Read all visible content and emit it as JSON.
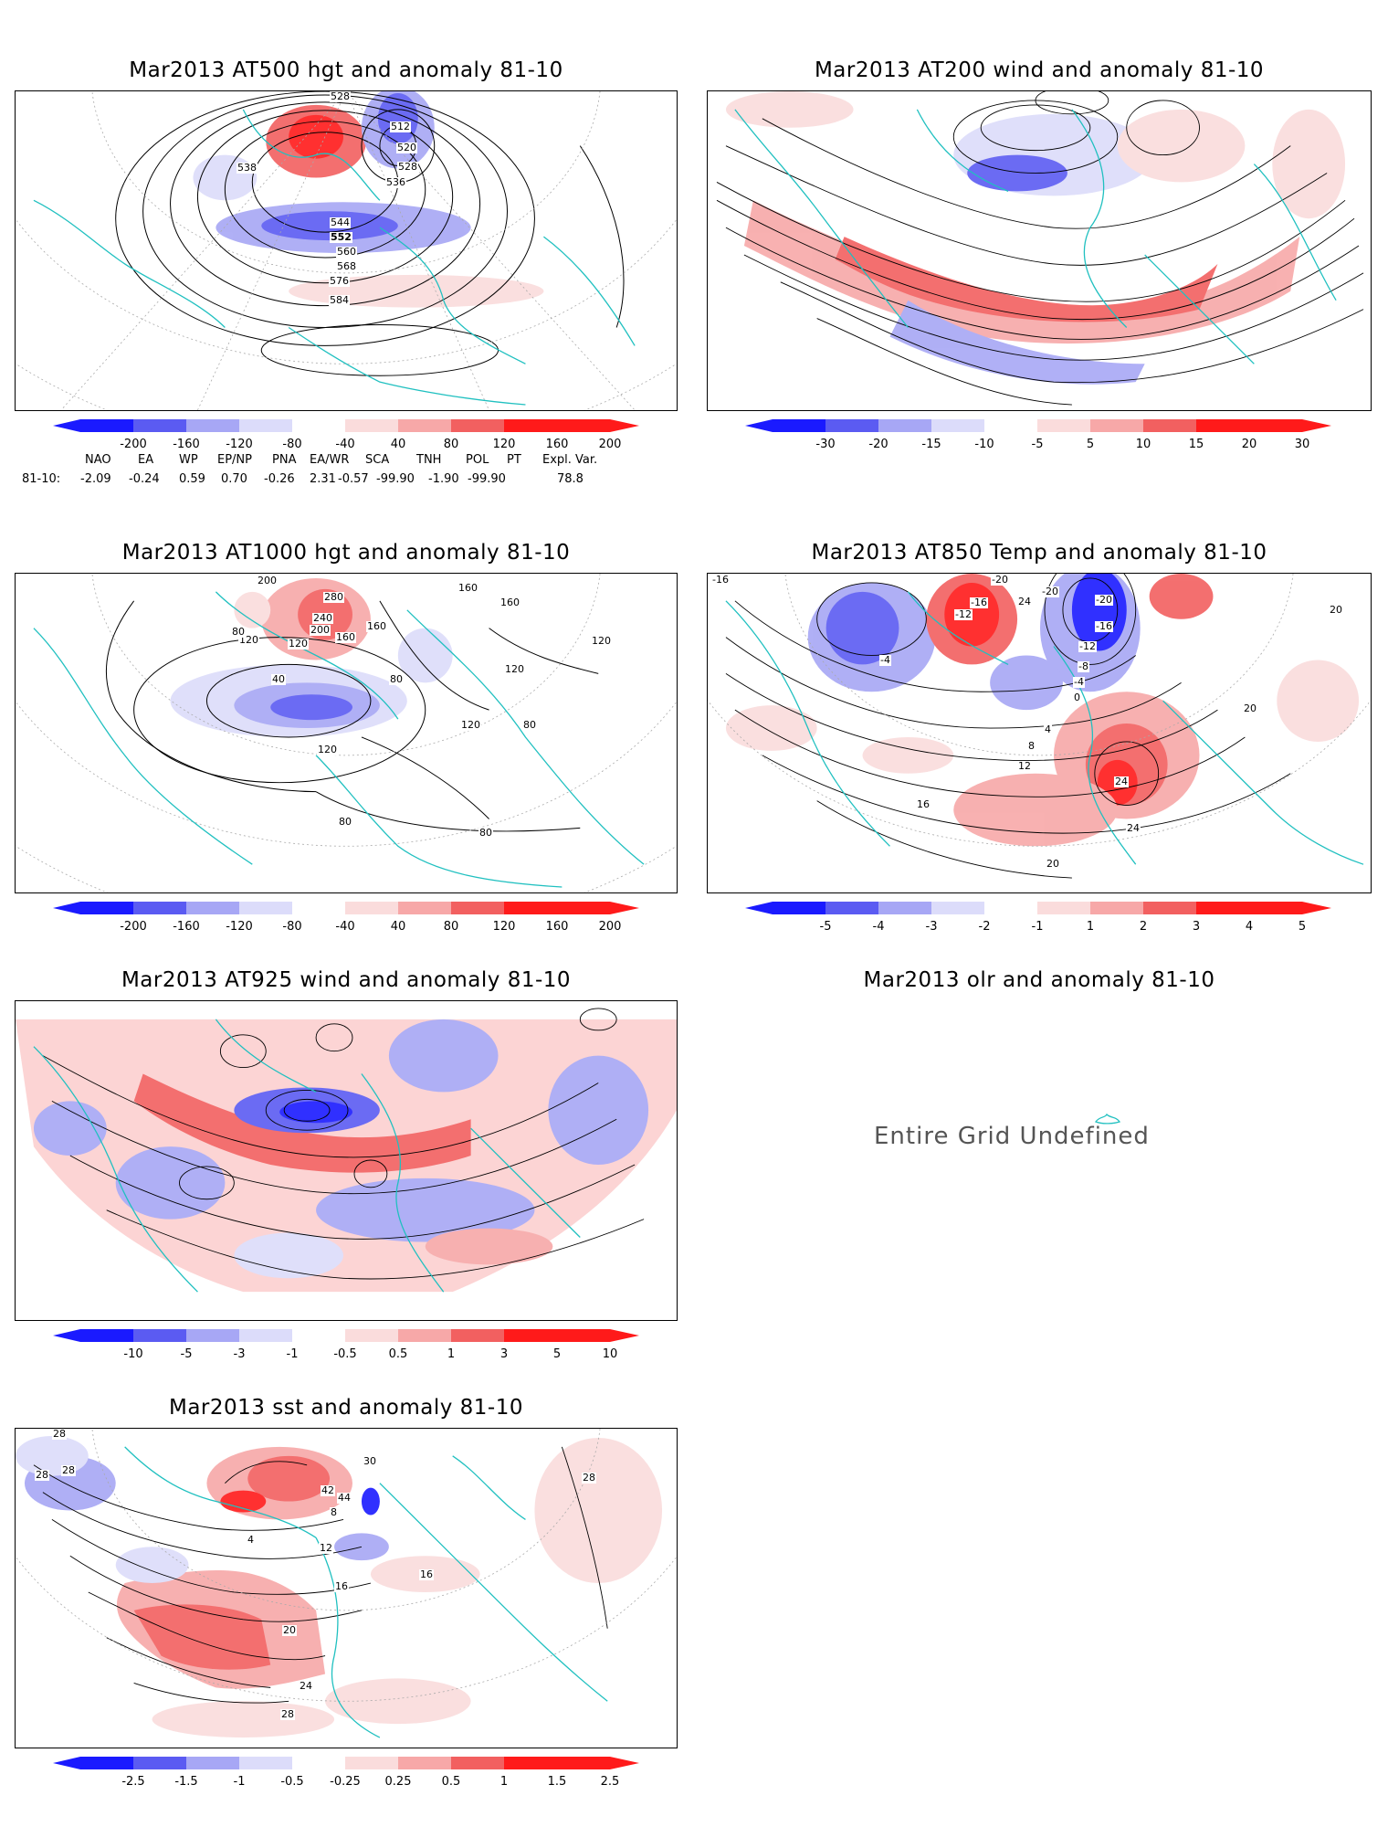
{
  "colors": {
    "neg_strong": "#1a1aff",
    "neg_mid": "#5b5bf2",
    "neg_light": "#a7a7f5",
    "neg_faint": "#dcdcfa",
    "pos_faint": "#fadcdc",
    "pos_light": "#f7a8a8",
    "pos_mid": "#f26060",
    "pos_strong": "#ff1a1a",
    "coast": "#20c0c0",
    "contour": "#000000"
  },
  "panels": [
    {
      "id": "z500",
      "title": "Mar2013 AT500 hgt and anomaly 81-10",
      "colorbar": [
        "-200",
        "-160",
        "-120",
        "-80",
        "-40",
        "40",
        "80",
        "120",
        "160",
        "200"
      ],
      "contour_labels": [
        "528",
        "512",
        "520",
        "528",
        "536",
        "538",
        "544",
        "552",
        "560",
        "568",
        "576",
        "584"
      ]
    },
    {
      "id": "w200",
      "title": "Mar2013 AT200 wind and anomaly 81-10",
      "colorbar": [
        "-30",
        "-20",
        "-15",
        "-10",
        "-5",
        "5",
        "10",
        "15",
        "20",
        "30"
      ],
      "contour_labels": []
    },
    {
      "id": "z1000",
      "title": "Mar2013 AT1000 hgt and anomaly 81-10",
      "colorbar": [
        "-200",
        "-160",
        "-120",
        "-80",
        "-40",
        "40",
        "80",
        "120",
        "160",
        "200"
      ],
      "contour_labels": [
        "200",
        "280",
        "240",
        "200",
        "160",
        "120",
        "160",
        "120",
        "80",
        "40",
        "80",
        "120",
        "120",
        "160",
        "160",
        "120",
        "80",
        "120",
        "80",
        "80"
      ]
    },
    {
      "id": "t850",
      "title": "Mar2013 AT850 Temp and anomaly 81-10",
      "colorbar": [
        "-5",
        "-4",
        "-3",
        "-2",
        "-1",
        "1",
        "2",
        "3",
        "4",
        "5"
      ],
      "contour_labels": [
        "-16",
        "-20",
        "-12",
        "-16",
        "24",
        "-20",
        "-20",
        "-16",
        "-12",
        "-8",
        "-4",
        "0",
        "4",
        "8",
        "12",
        "16",
        "20",
        "24",
        "20",
        "24",
        "20",
        "-4"
      ]
    },
    {
      "id": "w925",
      "title": "Mar2013 AT925 wind and anomaly 81-10",
      "colorbar": [
        "-10",
        "-5",
        "-3",
        "-1",
        "-0.5",
        "0.5",
        "1",
        "3",
        "5",
        "10"
      ],
      "contour_labels": []
    },
    {
      "id": "olr",
      "title": "Mar2013 olr and anomaly 81-10",
      "message": "Entire Grid Undefined"
    },
    {
      "id": "sst",
      "title": "Mar2013 sst and anomaly 81-10",
      "colorbar": [
        "-2.5",
        "-1.5",
        "-1",
        "-0.5",
        "-0.25",
        "0.25",
        "0.5",
        "1",
        "1.5",
        "2.5"
      ],
      "contour_labels": [
        "28",
        "28",
        "28",
        "4",
        "12",
        "16",
        "20",
        "24",
        "28",
        "16",
        "28",
        "30",
        "42",
        "44",
        "8"
      ]
    }
  ],
  "indices": {
    "headers": [
      "NAO",
      "EA",
      "WP",
      "EP/NP",
      "PNA",
      "EA/WR",
      "SCA",
      "TNH",
      "POL",
      "PT",
      "Expl. Var."
    ],
    "row_label": "81-10:",
    "values": [
      "-2.09",
      "-0.24",
      "0.59",
      "0.70",
      "-0.26",
      "2.31",
      "-0.57",
      "-99.90",
      "-1.90",
      "-99.90",
      "78.8"
    ]
  }
}
